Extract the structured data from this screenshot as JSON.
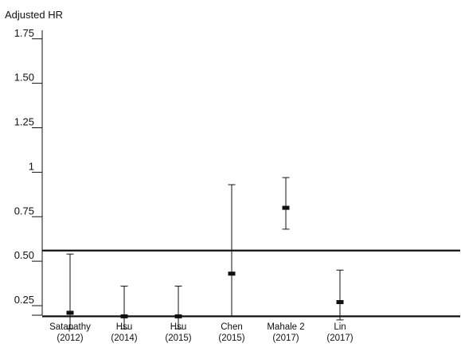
{
  "chart_data": {
    "type": "scatter",
    "ylabel": "Adjusted HR",
    "ylim": [
      0.05,
      1.85
    ],
    "yticks": [
      {
        "value": 0.25,
        "label": "0.25"
      },
      {
        "value": 0.5,
        "label": "0.50"
      },
      {
        "value": 0.75,
        "label": "0.75"
      },
      {
        "value": 1.0,
        "label": "1"
      },
      {
        "value": 1.25,
        "label": "1.25"
      },
      {
        "value": 1.5,
        "label": "1.50"
      },
      {
        "value": 1.75,
        "label": "1.75"
      }
    ],
    "points": [
      {
        "line1": "Satapathy",
        "line2": "(2012)",
        "hr": 0.21,
        "lower": 0.12,
        "upper": 0.54
      },
      {
        "line1": "Hsu",
        "line2": "(2014)",
        "hr": 0.19,
        "lower": 0.12,
        "upper": 0.36
      },
      {
        "line1": "Hsu",
        "line2": "(2015)",
        "hr": 0.19,
        "lower": 0.12,
        "upper": 0.36
      },
      {
        "line1": "Chen",
        "line2": "(2015)",
        "hr": 0.43,
        "lower": 0.19,
        "upper": 0.93
      },
      {
        "line1": "Mahale 2",
        "line2": "(2017)",
        "hr": 0.8,
        "lower": 0.68,
        "upper": 0.97
      },
      {
        "line1": "Lin",
        "line2": "(2017)",
        "hr": 0.27,
        "lower": 0.17,
        "upper": 0.45
      }
    ],
    "reference_lines": [
      0.56,
      0.19
    ],
    "colors": {
      "ink": "#111111",
      "background": "#ffffff"
    }
  }
}
